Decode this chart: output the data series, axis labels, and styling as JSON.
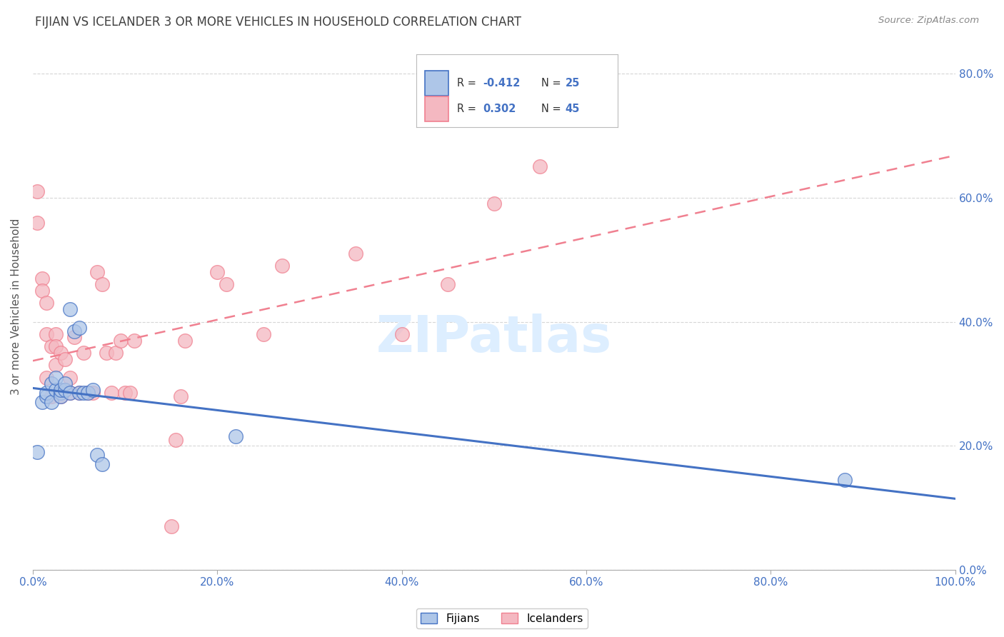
{
  "title": "FIJIAN VS ICELANDER 3 OR MORE VEHICLES IN HOUSEHOLD CORRELATION CHART",
  "source": "Source: ZipAtlas.com",
  "ylabel": "3 or more Vehicles in Household",
  "legend_label1": "Fijians",
  "legend_label2": "Icelanders",
  "r_fijian": -0.412,
  "n_fijian": 25,
  "r_icelander": 0.302,
  "n_icelander": 45,
  "color_fijian": "#aec6e8",
  "color_icelander": "#f4b8c1",
  "line_color_fijian": "#4472c4",
  "line_color_icelander": "#f08090",
  "bg_color": "#ffffff",
  "grid_color": "#cccccc",
  "title_color": "#404040",
  "right_ytick_color": "#4472c4",
  "fijian_x": [
    0.005,
    0.01,
    0.015,
    0.015,
    0.02,
    0.02,
    0.025,
    0.025,
    0.03,
    0.03,
    0.03,
    0.035,
    0.035,
    0.04,
    0.04,
    0.045,
    0.05,
    0.05,
    0.055,
    0.06,
    0.065,
    0.07,
    0.075,
    0.22,
    0.88
  ],
  "fijian_y": [
    0.19,
    0.27,
    0.28,
    0.285,
    0.27,
    0.3,
    0.29,
    0.31,
    0.285,
    0.28,
    0.29,
    0.29,
    0.3,
    0.285,
    0.42,
    0.385,
    0.39,
    0.285,
    0.285,
    0.285,
    0.29,
    0.185,
    0.17,
    0.215,
    0.145
  ],
  "icelander_x": [
    0.005,
    0.005,
    0.01,
    0.01,
    0.015,
    0.015,
    0.015,
    0.02,
    0.02,
    0.025,
    0.025,
    0.025,
    0.03,
    0.03,
    0.035,
    0.035,
    0.04,
    0.04,
    0.045,
    0.05,
    0.055,
    0.06,
    0.065,
    0.07,
    0.075,
    0.08,
    0.085,
    0.09,
    0.095,
    0.1,
    0.105,
    0.11,
    0.15,
    0.155,
    0.16,
    0.165,
    0.2,
    0.21,
    0.25,
    0.27,
    0.35,
    0.4,
    0.45,
    0.5,
    0.55
  ],
  "icelander_y": [
    0.61,
    0.56,
    0.47,
    0.45,
    0.43,
    0.38,
    0.31,
    0.36,
    0.28,
    0.38,
    0.36,
    0.33,
    0.35,
    0.28,
    0.34,
    0.29,
    0.285,
    0.31,
    0.375,
    0.285,
    0.35,
    0.285,
    0.285,
    0.48,
    0.46,
    0.35,
    0.285,
    0.35,
    0.37,
    0.285,
    0.285,
    0.37,
    0.07,
    0.21,
    0.28,
    0.37,
    0.48,
    0.46,
    0.38,
    0.49,
    0.51,
    0.38,
    0.46,
    0.59,
    0.65
  ],
  "xlim": [
    0.0,
    1.0
  ],
  "ylim": [
    0.0,
    0.85
  ],
  "x_ticks": [
    0.0,
    0.2,
    0.4,
    0.6,
    0.8,
    1.0
  ],
  "y_ticks": [
    0.0,
    0.2,
    0.4,
    0.6,
    0.8
  ],
  "watermark_text": "ZIPatlas",
  "watermark_color": "#ddeeff"
}
